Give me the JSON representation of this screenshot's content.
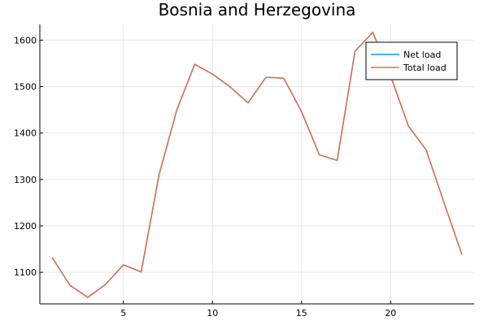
{
  "chart_data": {
    "type": "line",
    "title": "Bosnia and Herzegovina",
    "xlabel": "",
    "ylabel": "",
    "x": [
      1,
      2,
      3,
      4,
      5,
      6,
      7,
      8,
      9,
      10,
      11,
      12,
      13,
      14,
      15,
      16,
      17,
      18,
      19,
      20,
      21,
      22,
      23,
      24
    ],
    "series": [
      {
        "name": "Net load",
        "color": "#009AFA",
        "values": [
          1132,
          1072,
          1046,
          1074,
          1116,
          1101,
          1310,
          1450,
          1548,
          1527,
          1499,
          1465,
          1520,
          1518,
          1446,
          1353,
          1341,
          1576,
          1617,
          1523,
          1415,
          1363,
          1250,
          1138
        ]
      },
      {
        "name": "Total load",
        "color": "#E26F46",
        "values": [
          1132,
          1072,
          1046,
          1074,
          1116,
          1101,
          1310,
          1450,
          1548,
          1527,
          1499,
          1465,
          1520,
          1518,
          1446,
          1353,
          1341,
          1576,
          1617,
          1523,
          1415,
          1363,
          1250,
          1138
        ]
      }
    ],
    "xlim": [
      0.31,
      24.69
    ],
    "ylim": [
      1032,
      1634
    ],
    "x_ticks": [
      5,
      10,
      15,
      20
    ],
    "y_ticks": [
      1100,
      1200,
      1300,
      1400,
      1500,
      1600
    ],
    "grid": true,
    "legend_position": "top-right"
  }
}
